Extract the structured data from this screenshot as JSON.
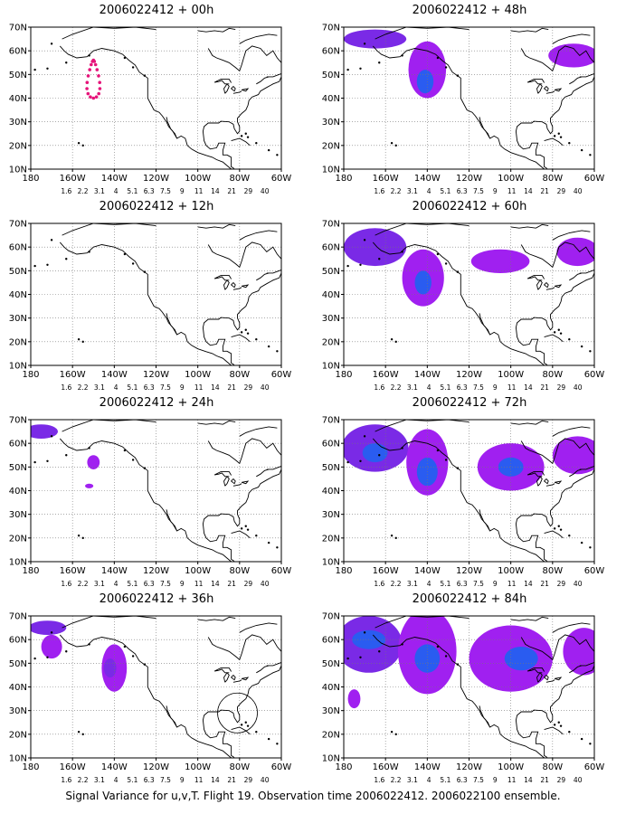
{
  "caption": "Signal Variance for u,v,T. Flight 19. Observation time 2006022412. 2006022100 ensemble.",
  "axes": {
    "lat_labels": [
      "70N",
      "60N",
      "50N",
      "40N",
      "30N",
      "20N",
      "10N"
    ],
    "lon_labels": [
      "180",
      "160W",
      "140W",
      "120W",
      "100W",
      "80W",
      "60W"
    ],
    "lat_values": [
      70,
      60,
      50,
      40,
      30,
      20,
      10
    ],
    "lon_values": [
      -180,
      -160,
      -140,
      -120,
      -100,
      -80,
      -60
    ]
  },
  "colorbar": {
    "labels": [
      "1.6",
      "2.2",
      "3.1",
      "4",
      "5.1",
      "6.3",
      "7.5",
      "9",
      "11",
      "14",
      "21",
      "29",
      "40"
    ],
    "colors": [
      "#a020f0",
      "#7a2ae6",
      "#5a33e0",
      "#2a5cf0",
      "#2a90ff",
      "#1ec8c8",
      "#1ed28c",
      "#3cc83c",
      "#a0dc3c",
      "#e6dc32",
      "#f0a028",
      "#f05028",
      "#ff0000",
      "#e6147a"
    ]
  },
  "panels": [
    {
      "id": "p00",
      "title": "2006022412 + 00h"
    },
    {
      "id": "p48",
      "title": "2006022412 + 48h"
    },
    {
      "id": "p12",
      "title": "2006022412 + 12h"
    },
    {
      "id": "p60",
      "title": "2006022412 + 60h"
    },
    {
      "id": "p24",
      "title": "2006022412 + 24h"
    },
    {
      "id": "p72",
      "title": "2006022412 + 72h"
    },
    {
      "id": "p36",
      "title": "2006022412 + 36h"
    },
    {
      "id": "p84",
      "title": "2006022412 + 84h"
    }
  ],
  "colors": {
    "purple": "#a020f0",
    "violet": "#7a2ae6",
    "blue": "#2a5cf0",
    "marker": "#e6147a"
  }
}
